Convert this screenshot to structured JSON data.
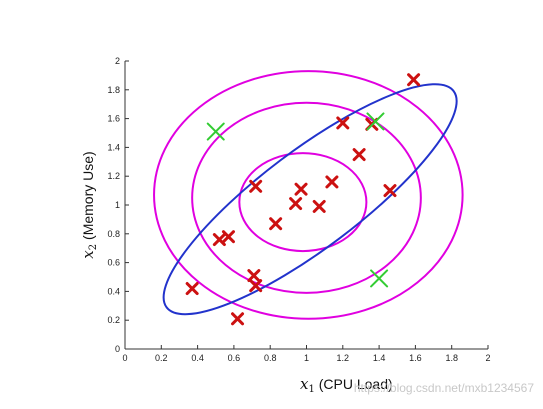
{
  "chart_data": {
    "type": "scatter",
    "title": "",
    "xlabel": {
      "var": "x",
      "sub": "1",
      "text": " (CPU Load)"
    },
    "ylabel": {
      "var": "x",
      "sub": "2",
      "text": " (Memory Use)"
    },
    "xlim": [
      0,
      2
    ],
    "ylim": [
      0,
      2
    ],
    "xticks": [
      "0",
      "0.2",
      "0.4",
      "0.6",
      "0.8",
      "1",
      "1.2",
      "1.4",
      "1.6",
      "1.8",
      "2"
    ],
    "yticks": [
      "0",
      "0.2",
      "0.4",
      "0.6",
      "0.8",
      "1",
      "1.2",
      "1.4",
      "1.6",
      "1.8",
      "2"
    ],
    "grid": false,
    "series": [
      {
        "marker": "x",
        "color": "#cc1111",
        "points": [
          [
            0.37,
            0.42
          ],
          [
            0.52,
            0.76
          ],
          [
            0.57,
            0.78
          ],
          [
            0.62,
            0.21
          ],
          [
            0.71,
            0.51
          ],
          [
            0.72,
            0.44
          ],
          [
            0.72,
            1.13
          ],
          [
            0.83,
            0.87
          ],
          [
            0.94,
            1.01
          ],
          [
            0.97,
            1.11
          ],
          [
            1.07,
            0.99
          ],
          [
            1.14,
            1.16
          ],
          [
            1.2,
            1.57
          ],
          [
            1.29,
            1.35
          ],
          [
            1.36,
            1.56
          ],
          [
            1.46,
            1.1
          ],
          [
            1.59,
            1.87
          ]
        ]
      },
      {
        "marker": "x",
        "color": "#33cc33",
        "points": [
          [
            0.5,
            1.51
          ],
          [
            1.38,
            1.58
          ],
          [
            1.4,
            0.49
          ]
        ]
      }
    ],
    "annotations": [
      {
        "shape": "ellipse",
        "color": "#e000e0",
        "cx": 0.98,
        "cy": 1.02,
        "rx": 0.35,
        "ry": 0.34,
        "angle": 0
      },
      {
        "shape": "ellipse",
        "color": "#e000e0",
        "cx": 1.0,
        "cy": 1.05,
        "rx": 0.63,
        "ry": 0.66,
        "angle": 0
      },
      {
        "shape": "ellipse",
        "color": "#e000e0",
        "cx": 1.01,
        "cy": 1.07,
        "rx": 0.85,
        "ry": 0.86,
        "angle": 0
      },
      {
        "shape": "ellipse",
        "color": "#2233cc",
        "cx": 1.02,
        "cy": 1.04,
        "rx": 0.99,
        "ry": 0.34,
        "angle": 37
      }
    ],
    "watermark": "https://blog.csdn.net/mxb1234567"
  }
}
